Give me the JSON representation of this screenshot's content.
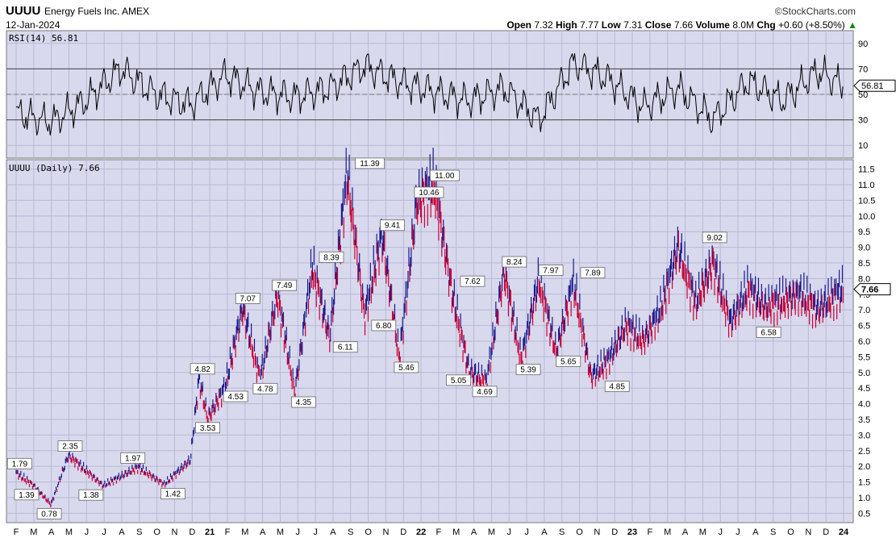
{
  "header": {
    "symbol": "UUUU",
    "company": "Energy Fuels Inc. AMEX",
    "date": "12-Jan-2024",
    "brand": "©StockCharts.com",
    "open_label": "Open",
    "open": "7.32",
    "high_label": "High",
    "high": "7.77",
    "low_label": "Low",
    "low": "7.31",
    "close_label": "Close",
    "close": "7.66",
    "volume_label": "Volume",
    "volume": "8.0M",
    "chg_label": "Chg",
    "chg": "+0.60 (+8.50%)",
    "chg_arrow": "▲",
    "accent_up": "#0a8a0a"
  },
  "chart_data": [
    {
      "type": "line",
      "title": "RSI(14) 56.81",
      "last_value": "56.81",
      "ylim": [
        0,
        100
      ],
      "y_ticks": [
        "10",
        "30",
        "50",
        "70",
        "90"
      ],
      "reference_lines": [
        30,
        50,
        70
      ],
      "line_color": "#000000",
      "overbought_fill": "#2e7d32",
      "x": [
        0,
        2,
        4,
        6,
        8,
        10,
        12,
        14,
        16,
        18,
        20,
        22,
        24,
        26,
        28,
        30,
        32,
        34,
        36,
        38,
        40,
        42,
        44,
        46,
        47.5
      ],
      "values": [
        35,
        28,
        45,
        70,
        50,
        42,
        65,
        52,
        48,
        55,
        72,
        60,
        52,
        45,
        55,
        30,
        75,
        62,
        40,
        55,
        30,
        60,
        45,
        68,
        57
      ]
    },
    {
      "type": "line",
      "title": "UUUU (Daily) 7.66",
      "last_value": "7.66",
      "ylim": [
        0.2,
        11.8
      ],
      "y_ticks": [
        "0.5",
        "1.0",
        "1.5",
        "2.0",
        "2.5",
        "3.0",
        "3.5",
        "4.0",
        "4.5",
        "5.0",
        "5.5",
        "6.0",
        "6.5",
        "7.0",
        "7.5",
        "8.0",
        "8.5",
        "9.0",
        "9.5",
        "10.0",
        "10.5",
        "11.0",
        "11.5"
      ],
      "x_ticks": [
        "F",
        "M",
        "A",
        "M",
        "J",
        "J",
        "A",
        "S",
        "O",
        "N",
        "D",
        "21",
        "F",
        "M",
        "A",
        "M",
        "J",
        "J",
        "A",
        "S",
        "O",
        "N",
        "D",
        "22",
        "F",
        "M",
        "A",
        "M",
        "J",
        "J",
        "A",
        "S",
        "O",
        "N",
        "D",
        "23",
        "F",
        "M",
        "A",
        "M",
        "J",
        "J",
        "A",
        "S",
        "O",
        "N",
        "D",
        "24"
      ],
      "series_colors": [
        "#cc0033",
        "#1a1a8c"
      ],
      "x": [
        0,
        1,
        2,
        3,
        5,
        7,
        8.5,
        10,
        10.5,
        11,
        12,
        13,
        14,
        15,
        16,
        17,
        18,
        19,
        20,
        21,
        22,
        23,
        24,
        25,
        26,
        27,
        28,
        29,
        30,
        31,
        32,
        33,
        34,
        35,
        36,
        37,
        38,
        39,
        40,
        41,
        42,
        43,
        44,
        45,
        46,
        47.5
      ],
      "values": [
        1.79,
        1.39,
        0.78,
        2.35,
        1.38,
        1.97,
        1.42,
        2.2,
        4.82,
        3.53,
        4.53,
        7.07,
        4.78,
        7.49,
        4.35,
        8.39,
        6.11,
        11.39,
        6.8,
        9.41,
        5.46,
        10.46,
        11.0,
        7.62,
        5.05,
        4.69,
        8.24,
        5.39,
        7.97,
        5.65,
        7.89,
        4.85,
        5.4,
        6.5,
        6.0,
        7.0,
        9.02,
        7.2,
        8.5,
        6.58,
        7.66,
        7.1,
        7.3,
        7.5,
        7.0,
        7.66
      ],
      "annotations": [
        {
          "x": 0.2,
          "y": 1.79,
          "text": "1.79",
          "pos": "above"
        },
        {
          "x": 0.6,
          "y": 1.39,
          "text": "1.39",
          "pos": "below"
        },
        {
          "x": 1.9,
          "y": 0.78,
          "text": "0.78",
          "pos": "below"
        },
        {
          "x": 3.1,
          "y": 2.35,
          "text": "2.35",
          "pos": "above"
        },
        {
          "x": 4.3,
          "y": 1.38,
          "text": "1.38",
          "pos": "below"
        },
        {
          "x": 6.7,
          "y": 1.97,
          "text": "1.97",
          "pos": "above"
        },
        {
          "x": 9.0,
          "y": 1.42,
          "text": "1.42",
          "pos": "below"
        },
        {
          "x": 10.7,
          "y": 4.82,
          "text": "4.82",
          "pos": "above"
        },
        {
          "x": 11.0,
          "y": 3.53,
          "text": "3.53",
          "pos": "below"
        },
        {
          "x": 12.6,
          "y": 4.53,
          "text": "4.53",
          "pos": "below"
        },
        {
          "x": 13.3,
          "y": 7.07,
          "text": "7.07",
          "pos": "above"
        },
        {
          "x": 14.3,
          "y": 4.78,
          "text": "4.78",
          "pos": "below"
        },
        {
          "x": 15.4,
          "y": 7.49,
          "text": "7.49",
          "pos": "above"
        },
        {
          "x": 16.5,
          "y": 4.35,
          "text": "4.35",
          "pos": "below"
        },
        {
          "x": 18.1,
          "y": 8.39,
          "text": "8.39",
          "pos": "above"
        },
        {
          "x": 18.9,
          "y": 6.11,
          "text": "6.11",
          "pos": "below"
        },
        {
          "x": 20.3,
          "y": 11.39,
          "text": "11.39",
          "pos": "above"
        },
        {
          "x": 21.1,
          "y": 6.8,
          "text": "6.80",
          "pos": "below"
        },
        {
          "x": 21.6,
          "y": 9.41,
          "text": "9.41",
          "pos": "above"
        },
        {
          "x": 22.4,
          "y": 5.46,
          "text": "5.46",
          "pos": "below"
        },
        {
          "x": 23.7,
          "y": 10.46,
          "text": "10.46",
          "pos": "above"
        },
        {
          "x": 24.6,
          "y": 11.0,
          "text": "11.00",
          "pos": "above"
        },
        {
          "x": 26.2,
          "y": 7.62,
          "text": "7.62",
          "pos": "above"
        },
        {
          "x": 25.4,
          "y": 5.05,
          "text": "5.05",
          "pos": "below"
        },
        {
          "x": 26.9,
          "y": 4.69,
          "text": "4.69",
          "pos": "below"
        },
        {
          "x": 28.6,
          "y": 8.24,
          "text": "8.24",
          "pos": "above"
        },
        {
          "x": 29.4,
          "y": 5.39,
          "text": "5.39",
          "pos": "below"
        },
        {
          "x": 30.7,
          "y": 7.97,
          "text": "7.97",
          "pos": "above"
        },
        {
          "x": 31.7,
          "y": 5.65,
          "text": "5.65",
          "pos": "below"
        },
        {
          "x": 33.1,
          "y": 7.89,
          "text": "7.89",
          "pos": "above"
        },
        {
          "x": 34.5,
          "y": 4.85,
          "text": "4.85",
          "pos": "below"
        },
        {
          "x": 40.1,
          "y": 9.02,
          "text": "9.02",
          "pos": "above"
        },
        {
          "x": 43.2,
          "y": 6.58,
          "text": "6.58",
          "pos": "below"
        }
      ]
    }
  ]
}
